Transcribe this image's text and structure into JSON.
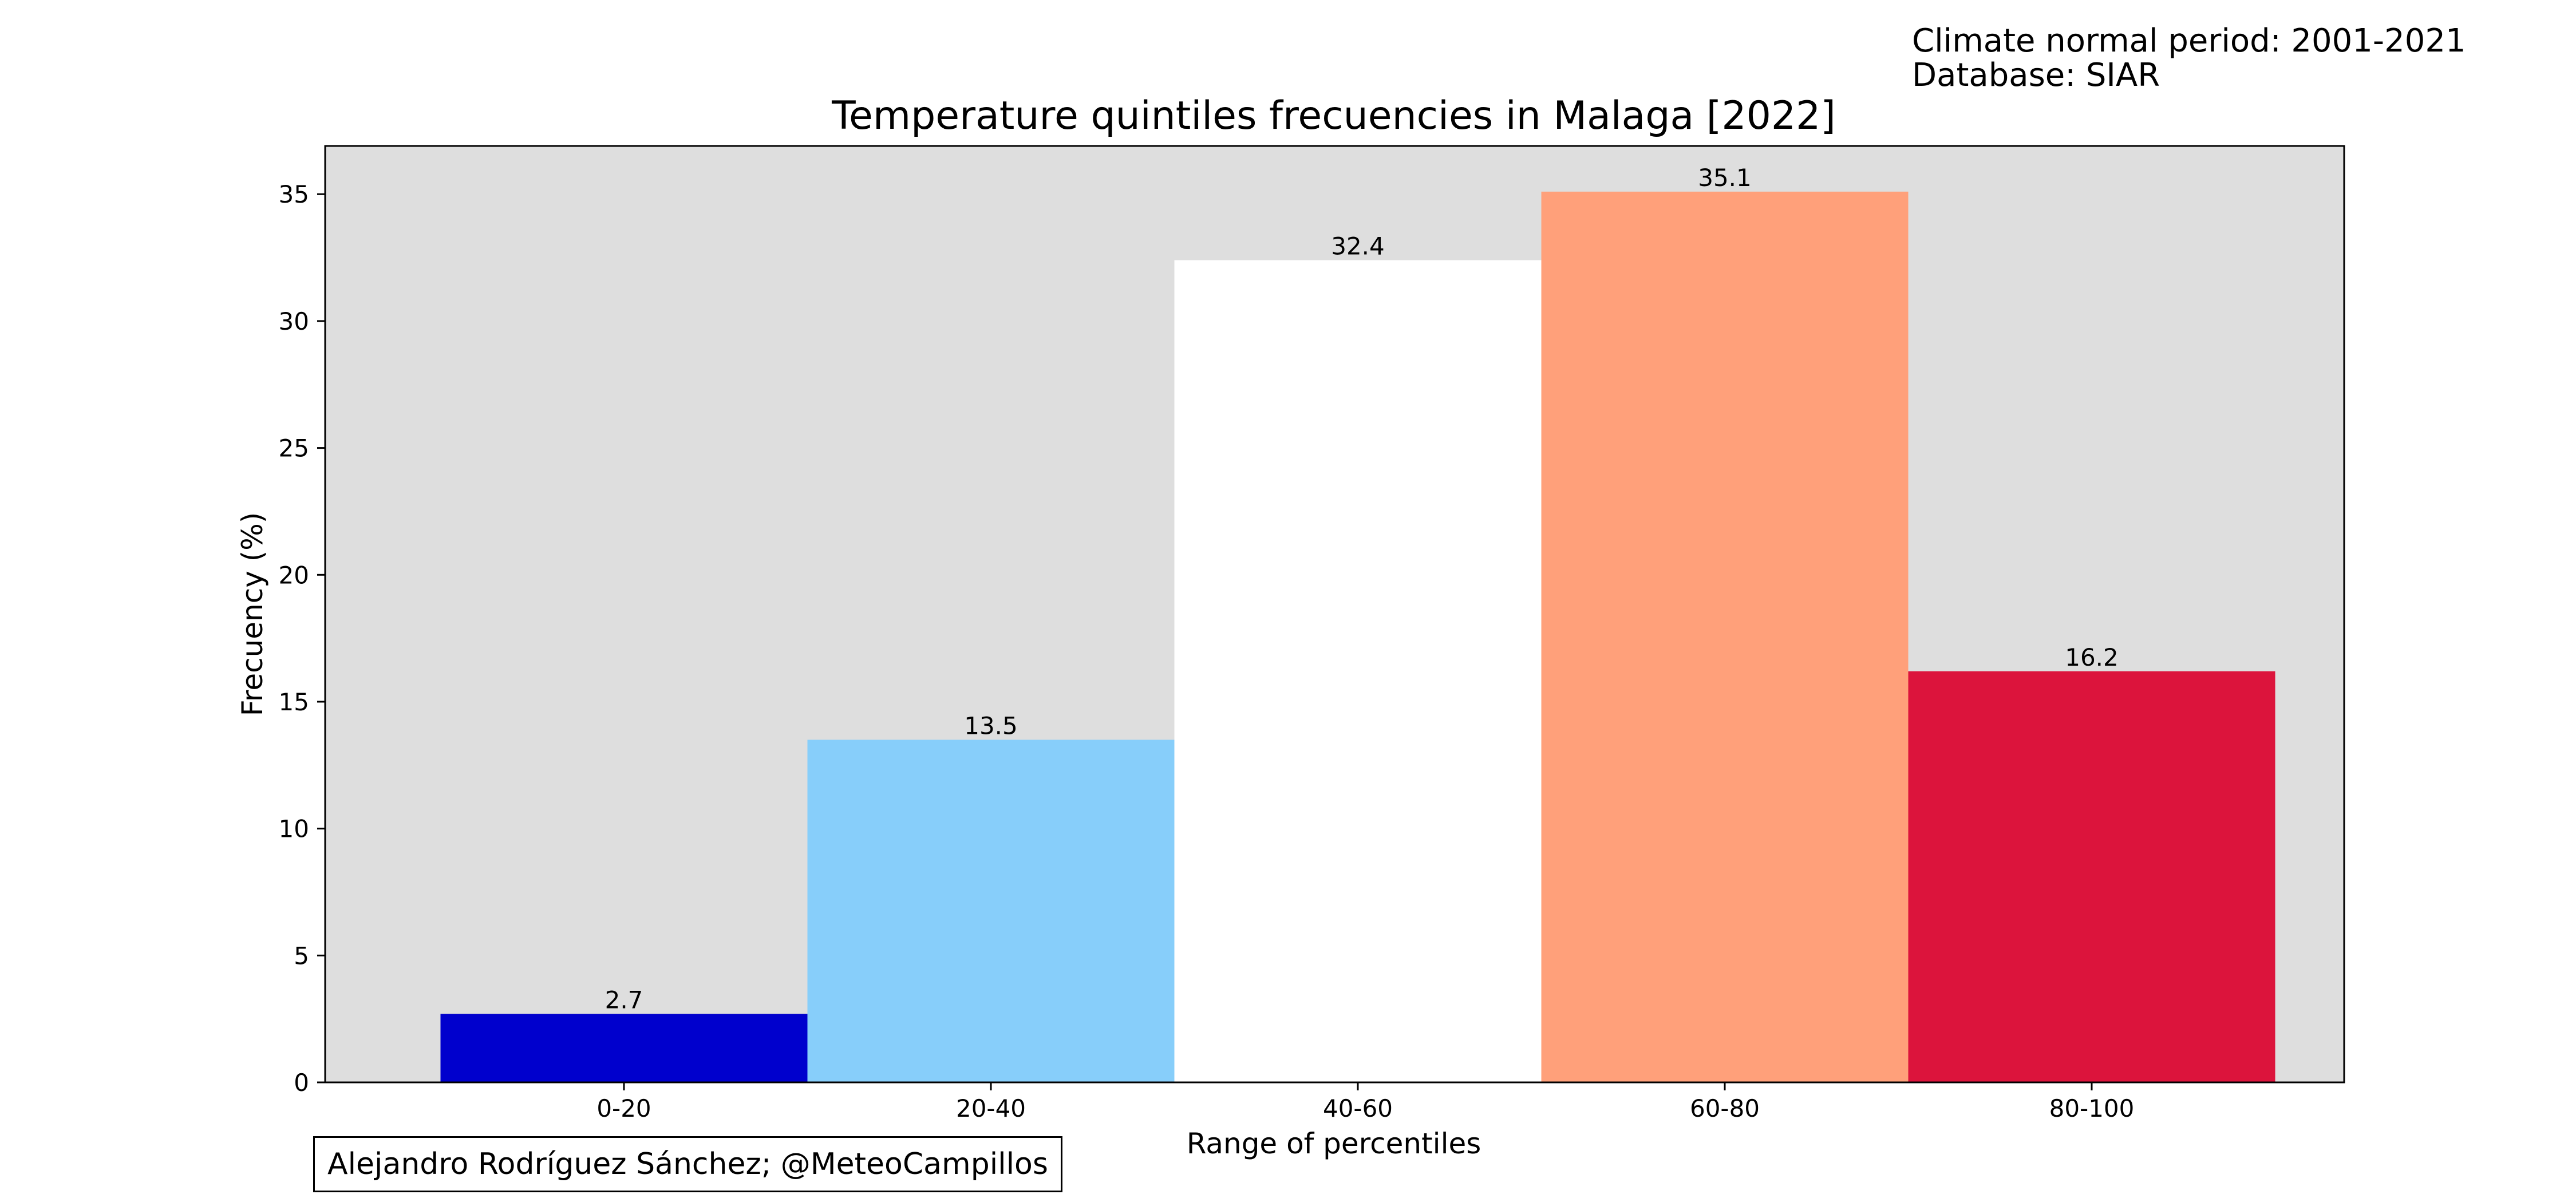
{
  "header": {
    "normal_period": "Climate normal period: 2001-2021",
    "database": "Database: SIAR"
  },
  "credit": "Alejandro Rodríguez Sánchez; @MeteoCampillos",
  "chart_data": {
    "type": "bar",
    "title": "Temperature quintiles frecuencies in Malaga [2022]",
    "xlabel": "Range of percentiles",
    "ylabel": "Frecuency (%)",
    "categories": [
      "0-20",
      "20-40",
      "40-60",
      "60-80",
      "80-100"
    ],
    "values": [
      2.7,
      13.5,
      32.4,
      35.1,
      16.2
    ],
    "data_labels": [
      "2.7",
      "13.5",
      "32.4",
      "35.1",
      "16.2"
    ],
    "colors": [
      "#0000cd",
      "#87cefa",
      "#ffffff",
      "#ffa07a",
      "#dc143c"
    ],
    "yticks": [
      0,
      5,
      10,
      15,
      20,
      25,
      30,
      35
    ],
    "ylim": [
      0,
      36.9
    ],
    "plot_background": "#dedede",
    "grid": false
  }
}
